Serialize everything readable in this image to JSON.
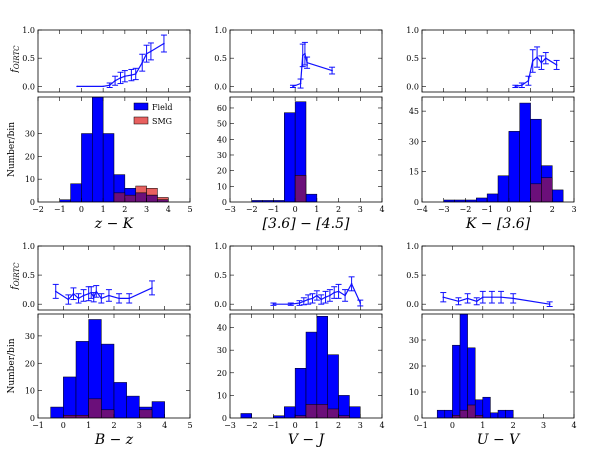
{
  "figure": {
    "legend": {
      "field_label": "Field",
      "smg_label": "SMG"
    },
    "ylabel_top": "f_{OIRTC}",
    "ylabel_bottom": "Number/bin",
    "colors": {
      "field": "#0000ff",
      "smg": "#e8605f",
      "overlap": "#6b0f7a",
      "curve": "#1010ff"
    }
  },
  "chart_data": [
    {
      "id": "zK",
      "type": "bar",
      "xlabel": "z − K",
      "xlim": [
        -2,
        5
      ],
      "xticks": [
        -2,
        -1,
        0,
        1,
        2,
        3,
        4,
        5
      ],
      "frac_ylim": [
        -0.1,
        1.0
      ],
      "frac_yticks": [
        0.0,
        0.5,
        1.0
      ],
      "hist_ylim": [
        0,
        46
      ],
      "hist_yticks": [
        10,
        20,
        30
      ],
      "bins": [
        -1,
        -0.5,
        0,
        0.5,
        1,
        1.5,
        2,
        2.5,
        3,
        3.5,
        4
      ],
      "field_counts": [
        1,
        8,
        30,
        46,
        30,
        12,
        6,
        4,
        3,
        1
      ],
      "smg_counts": [
        0,
        0,
        0,
        0,
        0,
        4,
        3,
        7,
        6,
        2
      ],
      "fraction": {
        "x": [
          -0.2,
          1.0,
          1.3,
          1.55,
          1.8,
          2.0,
          2.3,
          2.5,
          2.8,
          3.0,
          3.2,
          3.8
        ],
        "y": [
          0.0,
          0.0,
          0.02,
          0.1,
          0.15,
          0.18,
          0.2,
          0.22,
          0.42,
          0.58,
          0.62,
          0.76
        ],
        "err": [
          0.0,
          0.0,
          0.04,
          0.08,
          0.1,
          0.1,
          0.1,
          0.1,
          0.15,
          0.15,
          0.15,
          0.15
        ]
      },
      "legend": true
    },
    {
      "id": "ch12",
      "type": "bar",
      "xlabel": "[3.6] − [4.5]",
      "xlim": [
        -3,
        4
      ],
      "xticks": [
        -3,
        -2,
        -1,
        0,
        1,
        2,
        3,
        4
      ],
      "frac_ylim": [
        -0.1,
        1.0
      ],
      "frac_yticks": [
        0.0,
        0.5,
        1.0
      ],
      "hist_ylim": [
        0,
        67
      ],
      "hist_yticks": [
        10,
        20,
        30,
        40,
        50,
        60
      ],
      "bins": [
        -2,
        -1.5,
        -1,
        -0.5,
        0,
        0.5,
        1,
        1.5
      ],
      "field_counts": [
        1,
        1,
        1,
        57,
        64,
        5,
        0
      ],
      "smg_counts": [
        0,
        0,
        0,
        0,
        17,
        0,
        0
      ],
      "fraction": {
        "x": [
          -0.1,
          0.25,
          0.35,
          0.45,
          0.55,
          1.7
        ],
        "y": [
          0.0,
          0.05,
          0.55,
          0.58,
          0.42,
          0.28
        ],
        "err": [
          0.02,
          0.08,
          0.2,
          0.2,
          0.1,
          0.06
        ]
      },
      "legend": false
    },
    {
      "id": "K36",
      "type": "bar",
      "xlabel": "K − [3.6]",
      "xlim": [
        -4,
        3
      ],
      "xticks": [
        -4,
        -3,
        -2,
        -1,
        0,
        1,
        2,
        3
      ],
      "frac_ylim": [
        -0.1,
        1.0
      ],
      "frac_yticks": [
        0.0,
        0.5,
        1.0
      ],
      "hist_ylim": [
        0,
        52
      ],
      "hist_yticks": [
        15,
        30,
        45
      ],
      "bins": [
        -3,
        -2.5,
        -2,
        -1.5,
        -1,
        -0.5,
        0,
        0.5,
        1,
        1.5,
        2,
        2.5
      ],
      "field_counts": [
        1,
        1,
        1,
        2,
        4,
        13,
        35,
        49,
        41,
        18,
        6
      ],
      "smg_counts": [
        0,
        0,
        0,
        0,
        0,
        0,
        0,
        0,
        9,
        12,
        0
      ],
      "fraction": {
        "x": [
          0.3,
          0.6,
          0.9,
          1.1,
          1.3,
          1.5,
          1.7,
          2.2
        ],
        "y": [
          0.0,
          0.02,
          0.1,
          0.45,
          0.52,
          0.42,
          0.5,
          0.38
        ],
        "err": [
          0.02,
          0.04,
          0.08,
          0.2,
          0.18,
          0.12,
          0.1,
          0.08
        ]
      },
      "legend": false
    },
    {
      "id": "Bz",
      "type": "bar",
      "xlabel": "B − z",
      "xlim": [
        -1,
        5
      ],
      "xticks": [
        -1,
        0,
        1,
        2,
        3,
        4,
        5
      ],
      "frac_ylim": [
        -0.1,
        1.0
      ],
      "frac_yticks": [
        0.0,
        0.5,
        1.0
      ],
      "hist_ylim": [
        0,
        38
      ],
      "hist_yticks": [
        10,
        20,
        30
      ],
      "bins": [
        -0.5,
        0,
        0.5,
        1,
        1.5,
        2,
        2.5,
        3,
        3.5,
        4
      ],
      "field_counts": [
        4,
        15,
        28,
        36,
        27,
        13,
        8,
        4,
        6
      ],
      "smg_counts": [
        0,
        1,
        1,
        7,
        3,
        0,
        0,
        3,
        0
      ],
      "fraction": {
        "x": [
          -0.3,
          0.2,
          0.4,
          0.6,
          0.8,
          1.0,
          1.1,
          1.2,
          1.3,
          1.5,
          1.8,
          2.2,
          2.6,
          3.5
        ],
        "y": [
          0.22,
          0.08,
          0.18,
          0.1,
          0.15,
          0.18,
          0.2,
          0.12,
          0.22,
          0.1,
          0.15,
          0.1,
          0.1,
          0.28
        ],
        "err": [
          0.12,
          0.08,
          0.1,
          0.08,
          0.1,
          0.12,
          0.1,
          0.08,
          0.1,
          0.08,
          0.1,
          0.08,
          0.08,
          0.12
        ]
      },
      "legend": false
    },
    {
      "id": "VJ",
      "type": "bar",
      "xlabel": "V − J",
      "xlim": [
        -3,
        4
      ],
      "xticks": [
        -3,
        -2,
        -1,
        0,
        1,
        2,
        3,
        4
      ],
      "frac_ylim": [
        -0.1,
        1.0
      ],
      "frac_yticks": [
        0.0,
        0.5,
        1.0
      ],
      "hist_ylim": [
        0,
        46
      ],
      "hist_yticks": [
        10,
        20,
        30,
        40
      ],
      "bins": [
        -2.5,
        -2,
        -1.5,
        -1,
        -0.5,
        0,
        0.5,
        1,
        1.5,
        2,
        2.5,
        3
      ],
      "field_counts": [
        2,
        0,
        0,
        1,
        5,
        22,
        38,
        45,
        28,
        10,
        5
      ],
      "smg_counts": [
        0,
        0,
        0,
        0,
        0,
        1,
        6,
        6,
        4,
        1,
        0
      ],
      "fraction": {
        "x": [
          -1.0,
          -0.2,
          0.2,
          0.4,
          0.6,
          0.8,
          1.0,
          1.2,
          1.4,
          1.6,
          1.8,
          2.0,
          2.3,
          2.6,
          3.0
        ],
        "y": [
          0.0,
          0.0,
          0.02,
          0.05,
          0.08,
          0.1,
          0.15,
          0.08,
          0.12,
          0.15,
          0.2,
          0.22,
          0.15,
          0.35,
          0.02
        ],
        "err": [
          0.02,
          0.02,
          0.04,
          0.06,
          0.08,
          0.08,
          0.08,
          0.08,
          0.1,
          0.1,
          0.1,
          0.12,
          0.1,
          0.12,
          0.05
        ]
      },
      "legend": false
    },
    {
      "id": "UV",
      "type": "bar",
      "xlabel": "U − V",
      "xlim": [
        -1,
        4
      ],
      "xticks": [
        -1,
        0,
        1,
        2,
        3,
        4
      ],
      "frac_ylim": [
        -0.1,
        1.0
      ],
      "frac_yticks": [
        0.0,
        0.5,
        1.0
      ],
      "hist_ylim": [
        0,
        40
      ],
      "hist_yticks": [
        10,
        20,
        30
      ],
      "bins": [
        -0.75,
        -0.5,
        -0.25,
        0,
        0.25,
        0.5,
        0.75,
        1.0,
        1.25,
        1.5,
        1.75,
        2.0
      ],
      "field_counts": [
        0,
        3,
        3,
        28,
        40,
        27,
        7,
        8,
        2,
        3,
        3
      ],
      "smg_counts": [
        0,
        0,
        0,
        1,
        3,
        5,
        1,
        0,
        0,
        0,
        0
      ],
      "fraction": {
        "x": [
          -0.3,
          0.2,
          0.5,
          0.8,
          1.0,
          1.3,
          1.6,
          2.0,
          3.2
        ],
        "y": [
          0.12,
          0.05,
          0.1,
          0.05,
          0.12,
          0.12,
          0.12,
          0.1,
          0.0
        ],
        "err": [
          0.08,
          0.06,
          0.08,
          0.06,
          0.1,
          0.1,
          0.1,
          0.08,
          0.04
        ]
      },
      "legend": false
    }
  ]
}
